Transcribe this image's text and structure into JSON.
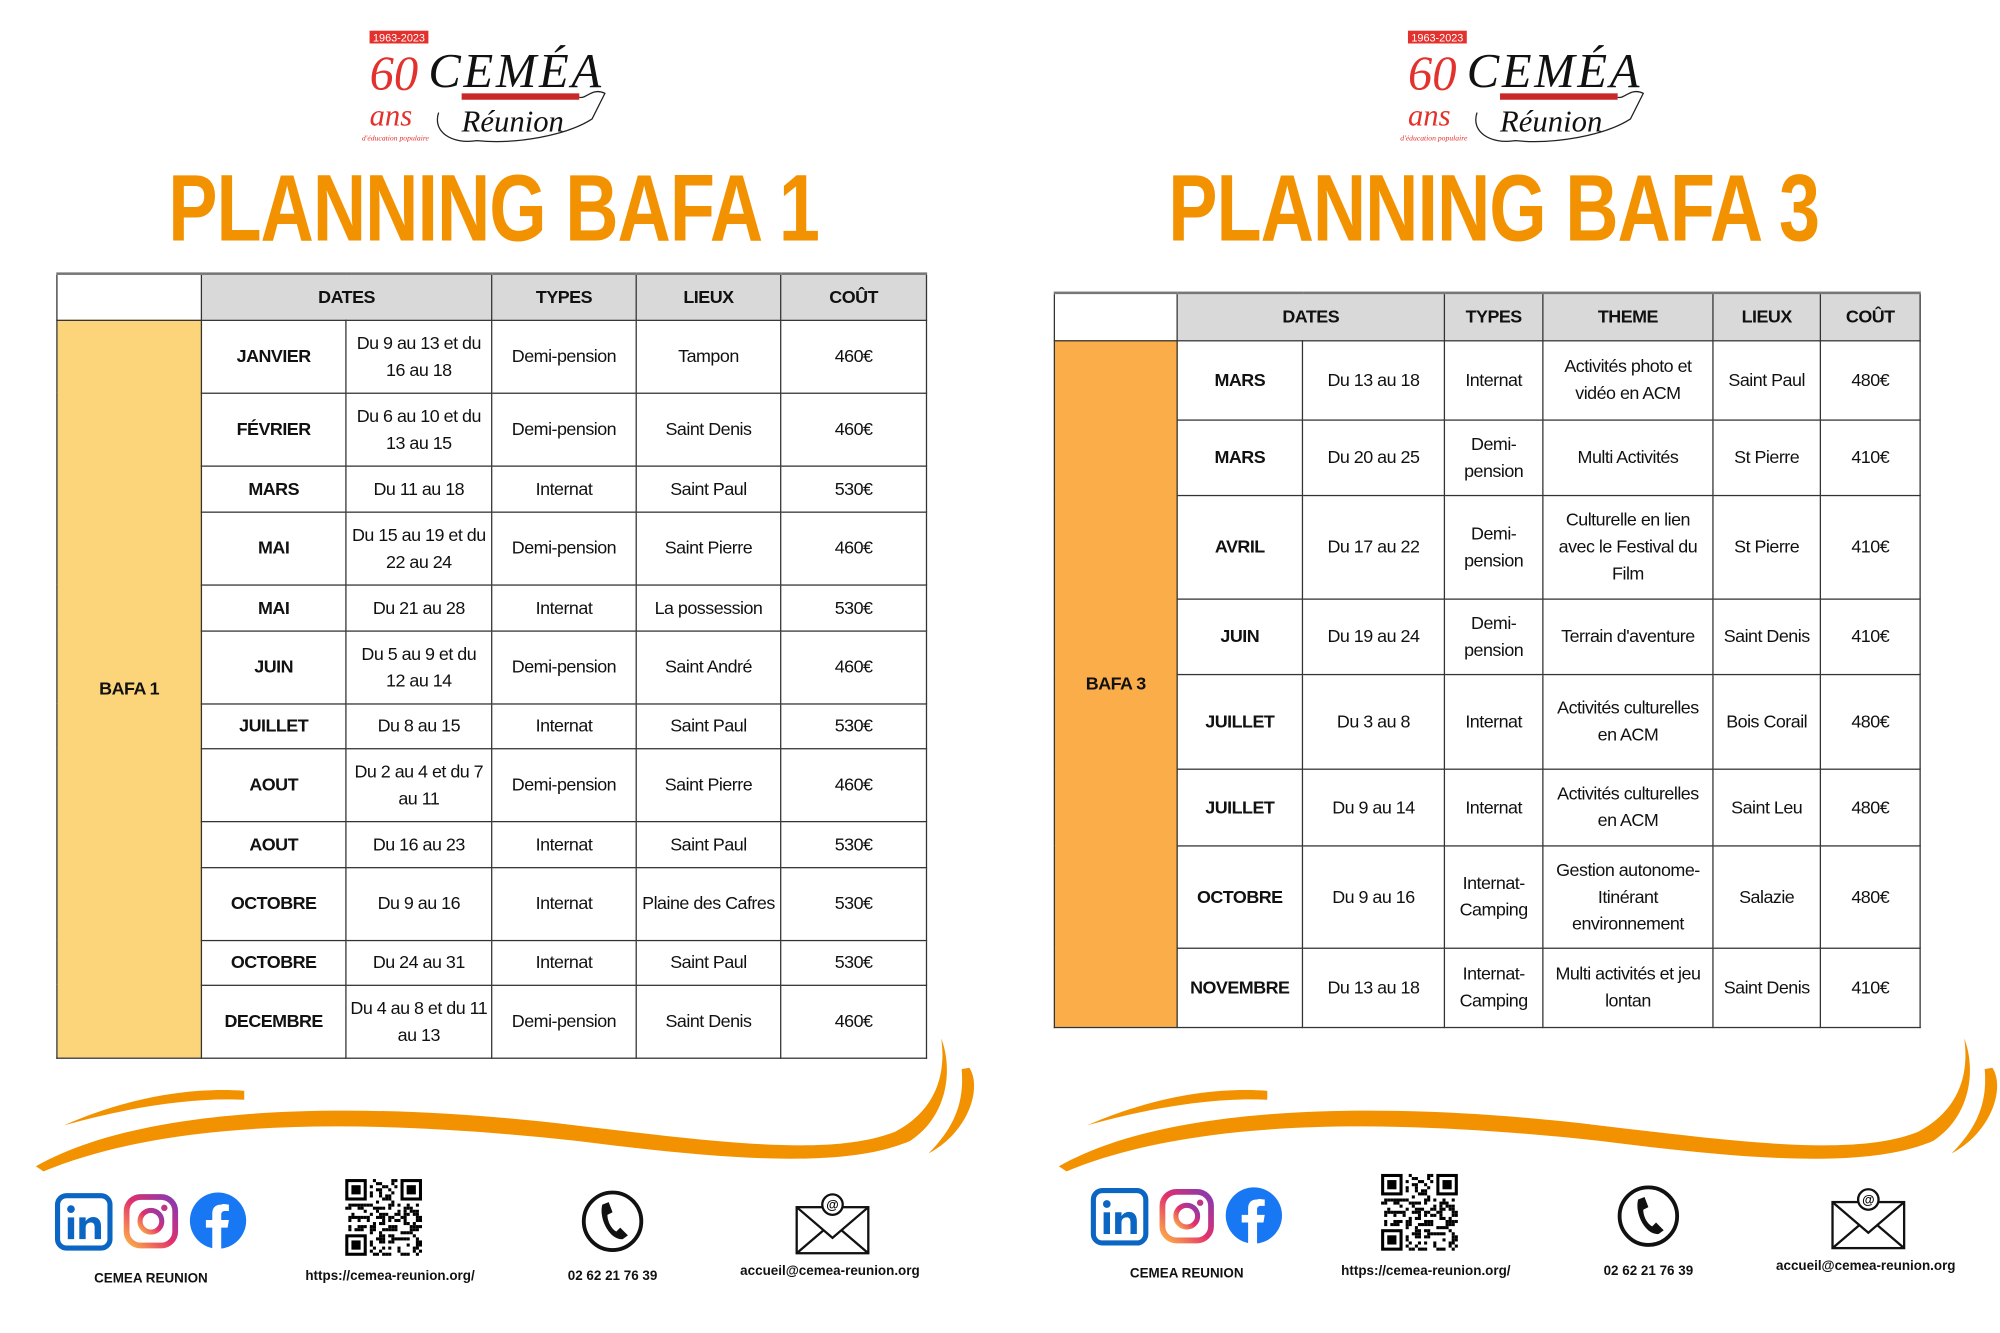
{
  "logo": {
    "years": "1963-2023",
    "sixty": "60",
    "brand": "CEMÉA",
    "ans": "ans",
    "region": "Réunion",
    "tagline": "d'éducation populaire"
  },
  "colors": {
    "accent": "#F39200",
    "bafa1_label": "#FCD57A",
    "bafa3_label": "#FBAD4A",
    "header": "#D9D9D9"
  },
  "bafa1": {
    "title": "PLANNING BAFA 1",
    "label": "BAFA 1",
    "headers": [
      "DATES",
      "TYPES",
      "LIEUX",
      "COÛT"
    ],
    "rows": [
      [
        "JANVIER",
        "Du 9 au 13 et du 16 au 18",
        "Demi-pension",
        "Tampon",
        "460€"
      ],
      [
        "FÉVRIER",
        "Du 6 au 10 et du 13 au 15",
        "Demi-pension",
        "Saint Denis",
        "460€"
      ],
      [
        "MARS",
        "Du 11 au 18",
        "Internat",
        "Saint Paul",
        "530€"
      ],
      [
        "MAI",
        "Du 15 au 19 et du 22 au 24",
        "Demi-pension",
        "Saint Pierre",
        "460€"
      ],
      [
        "MAI",
        "Du 21 au 28",
        "Internat",
        "La possession",
        "530€"
      ],
      [
        "JUIN",
        "Du 5 au 9 et du 12 au 14",
        "Demi-pension",
        "Saint André",
        "460€"
      ],
      [
        "JUILLET",
        "Du 8 au 15",
        "Internat",
        "Saint Paul",
        "530€"
      ],
      [
        "AOUT",
        "Du 2 au 4 et du 7 au 11",
        "Demi-pension",
        "Saint Pierre",
        "460€"
      ],
      [
        "AOUT",
        "Du 16 au 23",
        "Internat",
        "Saint Paul",
        "530€"
      ],
      [
        "OCTOBRE",
        "Du 9 au 16",
        "Internat",
        "Plaine des Cafres",
        "530€"
      ],
      [
        "OCTOBRE",
        "Du 24 au 31",
        "Internat",
        "Saint Paul",
        "530€"
      ],
      [
        "DECEMBRE",
        "Du 4 au 8 et du 11 au 13",
        "Demi-pension",
        "Saint Denis",
        "460€"
      ]
    ]
  },
  "bafa3": {
    "title": "PLANNING BAFA 3",
    "label": "BAFA 3",
    "headers": [
      "DATES",
      "TYPES",
      "THEME",
      "LIEUX",
      "COÛT"
    ],
    "rows": [
      [
        "MARS",
        "Du 13 au 18",
        "Internat",
        "Activités photo et vidéo en ACM",
        "Saint Paul",
        "480€"
      ],
      [
        "MARS",
        "Du 20 au 25",
        "Demi-pension",
        "Multi Activités",
        "St Pierre",
        "410€"
      ],
      [
        "AVRIL",
        "Du 17 au 22",
        "Demi-pension",
        "Culturelle en lien avec le Festival du Film",
        "St Pierre",
        "410€"
      ],
      [
        "JUIN",
        "Du 19 au 24",
        "Demi-pension",
        "Terrain d'aventure",
        "Saint Denis",
        "410€"
      ],
      [
        "JUILLET",
        "Du 3 au 8",
        "Internat",
        "Activités culturelles en ACM",
        "Bois Corail",
        "480€"
      ],
      [
        "JUILLET",
        "Du 9 au 14",
        "Internat",
        "Activités culturelles en ACM",
        "Saint Leu",
        "480€"
      ],
      [
        "OCTOBRE",
        "Du 9 au 16",
        "Internat-Camping",
        "Gestion autonome-Itinérant environnement",
        "Salazie",
        "480€"
      ],
      [
        "NOVEMBRE",
        "Du 13 au 18",
        "Internat-Camping",
        "Multi activités et jeu lontan",
        "Saint Denis",
        "410€"
      ]
    ]
  },
  "footer": {
    "social_label": "CEMEA REUNION",
    "website": "https://cemea-reunion.org/",
    "phone": "02 62 21 76 39",
    "email": "accueil@cemea-reunion.org",
    "icons": [
      "linkedin-icon",
      "instagram-icon",
      "facebook-icon",
      "qr-code-icon",
      "phone-icon",
      "email-icon"
    ]
  }
}
